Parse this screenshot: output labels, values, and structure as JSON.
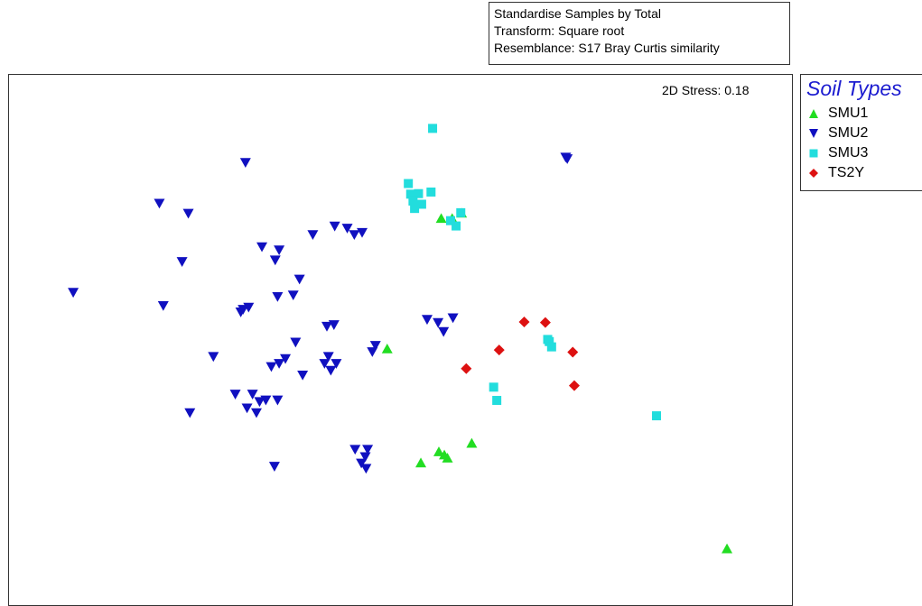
{
  "header": {
    "transform_lines": [
      "Standardise Samples by Total",
      "Transform: Square root",
      "Resemblance: S17 Bray Curtis similarity"
    ]
  },
  "stress_label": "2D Stress: 0.18",
  "colors": {
    "SMU1": "#22dd22",
    "SMU2": "#1010c0",
    "SMU3": "#22dddd",
    "TS2Y": "#dd1111"
  },
  "chart_data": {
    "type": "scatter",
    "title": "",
    "xlabel": "",
    "ylabel": "",
    "xlim": [
      0,
      100
    ],
    "ylim": [
      0,
      100
    ],
    "grid": false,
    "legend_placement": "right",
    "legend_title": "Soil Types",
    "series": [
      {
        "name": "SMU1",
        "marker": "triangle-up",
        "color": "#22dd22",
        "points": [
          [
            55.2,
            72.9
          ],
          [
            56.6,
            72.9
          ],
          [
            57.8,
            73.9
          ],
          [
            48.3,
            48.3
          ],
          [
            54.9,
            28.9
          ],
          [
            55.6,
            28.3
          ],
          [
            56.0,
            27.7
          ],
          [
            59.1,
            30.5
          ],
          [
            52.6,
            26.8
          ],
          [
            91.7,
            10.6
          ]
        ]
      },
      {
        "name": "SMU2",
        "marker": "triangle-down",
        "color": "#1010c0",
        "points": [
          [
            8.2,
            59.0
          ],
          [
            19.2,
            75.8
          ],
          [
            22.9,
            73.9
          ],
          [
            30.2,
            83.5
          ],
          [
            22.1,
            64.8
          ],
          [
            19.7,
            56.5
          ],
          [
            32.3,
            67.6
          ],
          [
            34.5,
            67.0
          ],
          [
            34.0,
            65.1
          ],
          [
            38.8,
            69.9
          ],
          [
            41.6,
            71.5
          ],
          [
            43.2,
            71.1
          ],
          [
            44.1,
            69.9
          ],
          [
            45.1,
            70.3
          ],
          [
            37.1,
            61.5
          ],
          [
            34.3,
            58.2
          ],
          [
            36.3,
            58.5
          ],
          [
            29.9,
            55.8
          ],
          [
            29.6,
            55.3
          ],
          [
            30.6,
            56.2
          ],
          [
            40.6,
            52.6
          ],
          [
            41.5,
            52.9
          ],
          [
            36.6,
            49.6
          ],
          [
            26.1,
            46.9
          ],
          [
            33.5,
            45.0
          ],
          [
            34.5,
            45.6
          ],
          [
            35.3,
            46.5
          ],
          [
            40.3,
            45.6
          ],
          [
            40.8,
            46.9
          ],
          [
            41.8,
            45.6
          ],
          [
            41.1,
            44.3
          ],
          [
            37.5,
            43.4
          ],
          [
            46.8,
            49.0
          ],
          [
            46.4,
            47.8
          ],
          [
            28.9,
            39.8
          ],
          [
            31.1,
            39.8
          ],
          [
            32.0,
            38.4
          ],
          [
            32.8,
            38.7
          ],
          [
            34.3,
            38.7
          ],
          [
            30.4,
            37.2
          ],
          [
            31.6,
            36.3
          ],
          [
            23.1,
            36.3
          ],
          [
            44.2,
            29.4
          ],
          [
            45.8,
            29.4
          ],
          [
            45.5,
            28.0
          ],
          [
            45.0,
            26.8
          ],
          [
            45.6,
            25.8
          ],
          [
            33.9,
            26.2
          ],
          [
            53.4,
            53.9
          ],
          [
            54.8,
            53.3
          ],
          [
            55.5,
            51.6
          ],
          [
            56.7,
            54.2
          ],
          [
            71.1,
            84.5
          ],
          [
            71.3,
            84.2
          ]
        ]
      },
      {
        "name": "SMU3",
        "marker": "square",
        "color": "#22dddd",
        "points": [
          [
            54.1,
            89.9
          ],
          [
            51.0,
            79.5
          ],
          [
            51.3,
            77.5
          ],
          [
            52.3,
            77.6
          ],
          [
            53.9,
            77.9
          ],
          [
            51.6,
            76.2
          ],
          [
            52.7,
            75.6
          ],
          [
            51.8,
            74.8
          ],
          [
            56.4,
            72.5
          ],
          [
            57.7,
            74.0
          ],
          [
            57.1,
            71.5
          ],
          [
            68.8,
            50.1
          ],
          [
            69.0,
            49.7
          ],
          [
            69.3,
            48.7
          ],
          [
            61.9,
            41.1
          ],
          [
            62.3,
            38.6
          ],
          [
            82.7,
            35.7
          ]
        ]
      },
      {
        "name": "TS2Y",
        "marker": "diamond",
        "color": "#dd1111",
        "points": [
          [
            65.8,
            53.4
          ],
          [
            68.5,
            53.3
          ],
          [
            62.6,
            48.1
          ],
          [
            58.4,
            44.6
          ],
          [
            72.0,
            47.7
          ],
          [
            72.2,
            41.4
          ]
        ]
      }
    ]
  }
}
